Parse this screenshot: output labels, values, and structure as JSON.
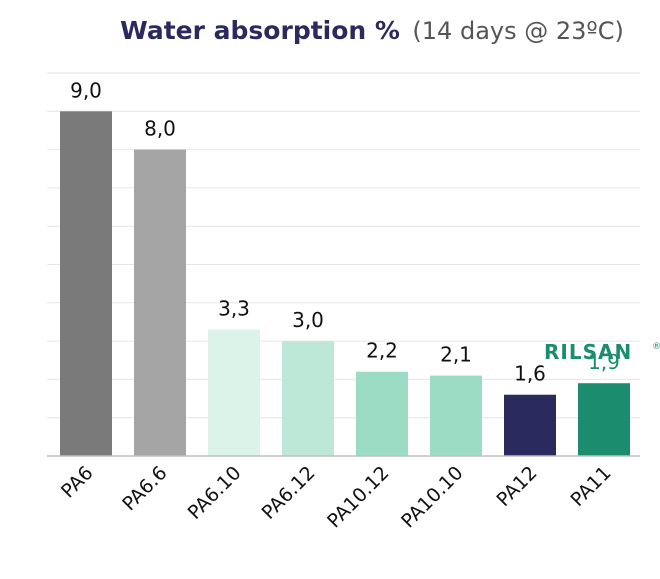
{
  "colors": {
    "title": "#2b2a5e",
    "title_light": "#555555",
    "grid": "#e6e6e6",
    "axis": "#bfbfbf",
    "label": "#111111",
    "brand": "#1b8c6e"
  },
  "brand": {
    "name": "RILSAN",
    "mark": "®"
  },
  "chart_data": {
    "type": "bar",
    "title": "Water absorption %",
    "subtitle": "(14 days @ 23ºC)",
    "xlabel": "",
    "ylabel": "",
    "ylim": [
      0,
      10
    ],
    "grid": true,
    "decimal_separator": ",",
    "categories": [
      "PA6",
      "PA6.6",
      "PA6.10",
      "PA6.12",
      "PA10.12",
      "PA10.10",
      "PA12",
      "PA11"
    ],
    "values": [
      9.0,
      8.0,
      3.3,
      3.0,
      2.2,
      2.1,
      1.6,
      1.9
    ],
    "bar_colors": [
      "#7a7a7a",
      "#a5a5a5",
      "#dcf3ea",
      "#bde8d8",
      "#9cdbc4",
      "#9cdbc4",
      "#2b2a5e",
      "#1b8c6e"
    ],
    "value_label_colors": [
      "#111111",
      "#111111",
      "#111111",
      "#111111",
      "#111111",
      "#111111",
      "#111111",
      "#1b8c6e"
    ]
  }
}
